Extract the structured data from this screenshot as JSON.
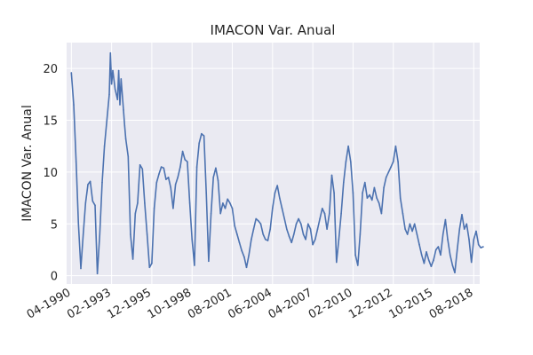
{
  "chart_data": {
    "type": "line",
    "title": "IMACON Var. Anual",
    "xlabel": "",
    "ylabel": "IMACON Var. Anual",
    "xlim": [
      "1989-12",
      "2019-01"
    ],
    "ylim": [
      -0.8,
      22.5
    ],
    "grid": true,
    "y_ticks": [
      0,
      5,
      10,
      15,
      20
    ],
    "x_ticks": [
      "04-1990",
      "02-1993",
      "12-1995",
      "10-1998",
      "08-2001",
      "06-2004",
      "04-2007",
      "02-2010",
      "12-2012",
      "10-2015",
      "08-2018"
    ],
    "series": [
      {
        "color": "#4c72b0",
        "points": [
          [
            "1990-04",
            19.6
          ],
          [
            "1990-06",
            16.5
          ],
          [
            "1990-08",
            11.0
          ],
          [
            "1990-10",
            5.0
          ],
          [
            "1990-12",
            0.7
          ],
          [
            "1991-02",
            4.0
          ],
          [
            "1991-04",
            7.0
          ],
          [
            "1991-06",
            8.8
          ],
          [
            "1991-08",
            9.1
          ],
          [
            "1991-10",
            7.2
          ],
          [
            "1991-12",
            6.8
          ],
          [
            "1992-02",
            0.2
          ],
          [
            "1992-04",
            4.0
          ],
          [
            "1992-06",
            9.0
          ],
          [
            "1992-08",
            12.5
          ],
          [
            "1992-10",
            15.0
          ],
          [
            "1992-12",
            17.5
          ],
          [
            "1993-01",
            21.5
          ],
          [
            "1993-02",
            18.5
          ],
          [
            "1993-03",
            19.8
          ],
          [
            "1993-05",
            18.0
          ],
          [
            "1993-07",
            17.0
          ],
          [
            "1993-08",
            19.8
          ],
          [
            "1993-09",
            16.5
          ],
          [
            "1993-10",
            19.0
          ],
          [
            "1993-12",
            16.0
          ],
          [
            "1994-01",
            14.5
          ],
          [
            "1994-02",
            13.2
          ],
          [
            "1994-04",
            11.5
          ],
          [
            "1994-06",
            4.0
          ],
          [
            "1994-08",
            1.6
          ],
          [
            "1994-10",
            6.0
          ],
          [
            "1994-12",
            7.0
          ],
          [
            "1995-02",
            10.7
          ],
          [
            "1995-04",
            10.3
          ],
          [
            "1995-06",
            7.0
          ],
          [
            "1995-08",
            4.0
          ],
          [
            "1995-10",
            0.8
          ],
          [
            "1995-12",
            1.2
          ],
          [
            "1996-02",
            6.5
          ],
          [
            "1996-04",
            9.0
          ],
          [
            "1996-06",
            9.8
          ],
          [
            "1996-08",
            10.5
          ],
          [
            "1996-10",
            10.4
          ],
          [
            "1996-12",
            9.3
          ],
          [
            "1997-02",
            9.5
          ],
          [
            "1997-04",
            8.5
          ],
          [
            "1997-06",
            6.5
          ],
          [
            "1997-08",
            8.8
          ],
          [
            "1997-10",
            9.5
          ],
          [
            "1997-12",
            10.5
          ],
          [
            "1998-02",
            12.0
          ],
          [
            "1998-04",
            11.2
          ],
          [
            "1998-06",
            11.0
          ],
          [
            "1998-08",
            7.0
          ],
          [
            "1998-10",
            3.5
          ],
          [
            "1998-12",
            1.0
          ],
          [
            "1999-02",
            10.5
          ],
          [
            "1999-04",
            12.8
          ],
          [
            "1999-06",
            13.7
          ],
          [
            "1999-08",
            13.5
          ],
          [
            "1999-10",
            8.0
          ],
          [
            "1999-12",
            1.4
          ],
          [
            "2000-02",
            6.0
          ],
          [
            "2000-04",
            9.5
          ],
          [
            "2000-06",
            10.4
          ],
          [
            "2000-08",
            9.2
          ],
          [
            "2000-10",
            6.0
          ],
          [
            "2000-12",
            7.0
          ],
          [
            "2001-02",
            6.5
          ],
          [
            "2001-04",
            7.4
          ],
          [
            "2001-06",
            7.0
          ],
          [
            "2001-08",
            6.5
          ],
          [
            "2001-10",
            4.8
          ],
          [
            "2001-12",
            4.0
          ],
          [
            "2002-02",
            3.2
          ],
          [
            "2002-04",
            2.4
          ],
          [
            "2002-06",
            1.8
          ],
          [
            "2002-08",
            0.8
          ],
          [
            "2002-10",
            2.0
          ],
          [
            "2002-12",
            3.5
          ],
          [
            "2003-02",
            4.5
          ],
          [
            "2003-04",
            5.5
          ],
          [
            "2003-06",
            5.3
          ],
          [
            "2003-08",
            5.0
          ],
          [
            "2003-10",
            4.0
          ],
          [
            "2003-12",
            3.5
          ],
          [
            "2004-02",
            3.4
          ],
          [
            "2004-04",
            4.5
          ],
          [
            "2004-06",
            6.5
          ],
          [
            "2004-08",
            8.0
          ],
          [
            "2004-10",
            8.7
          ],
          [
            "2004-12",
            7.5
          ],
          [
            "2005-02",
            6.5
          ],
          [
            "2005-04",
            5.5
          ],
          [
            "2005-06",
            4.5
          ],
          [
            "2005-08",
            3.8
          ],
          [
            "2005-10",
            3.2
          ],
          [
            "2005-12",
            4.0
          ],
          [
            "2006-02",
            5.0
          ],
          [
            "2006-04",
            5.5
          ],
          [
            "2006-06",
            5.0
          ],
          [
            "2006-08",
            4.0
          ],
          [
            "2006-10",
            3.5
          ],
          [
            "2006-12",
            5.0
          ],
          [
            "2007-02",
            4.5
          ],
          [
            "2007-04",
            3.0
          ],
          [
            "2007-06",
            3.5
          ],
          [
            "2007-08",
            4.5
          ],
          [
            "2007-10",
            5.5
          ],
          [
            "2007-12",
            6.5
          ],
          [
            "2008-02",
            6.0
          ],
          [
            "2008-04",
            4.5
          ],
          [
            "2008-06",
            6.0
          ],
          [
            "2008-08",
            9.7
          ],
          [
            "2008-10",
            8.0
          ],
          [
            "2008-12",
            1.3
          ],
          [
            "2009-02",
            3.5
          ],
          [
            "2009-04",
            6.0
          ],
          [
            "2009-06",
            9.0
          ],
          [
            "2009-08",
            11.0
          ],
          [
            "2009-10",
            12.5
          ],
          [
            "2009-12",
            11.0
          ],
          [
            "2010-02",
            8.0
          ],
          [
            "2010-04",
            2.0
          ],
          [
            "2010-06",
            1.0
          ],
          [
            "2010-08",
            4.0
          ],
          [
            "2010-10",
            8.0
          ],
          [
            "2010-12",
            9.0
          ],
          [
            "2011-02",
            7.5
          ],
          [
            "2011-04",
            7.8
          ],
          [
            "2011-06",
            7.3
          ],
          [
            "2011-08",
            8.5
          ],
          [
            "2011-10",
            7.5
          ],
          [
            "2011-12",
            7.0
          ],
          [
            "2012-02",
            6.0
          ],
          [
            "2012-04",
            8.5
          ],
          [
            "2012-06",
            9.5
          ],
          [
            "2012-08",
            10.0
          ],
          [
            "2012-10",
            10.5
          ],
          [
            "2012-12",
            11.0
          ],
          [
            "2013-02",
            12.5
          ],
          [
            "2013-04",
            11.0
          ],
          [
            "2013-06",
            7.5
          ],
          [
            "2013-08",
            6.0
          ],
          [
            "2013-10",
            4.5
          ],
          [
            "2013-12",
            4.0
          ],
          [
            "2014-02",
            5.0
          ],
          [
            "2014-04",
            4.3
          ],
          [
            "2014-06",
            5.0
          ],
          [
            "2014-08",
            4.0
          ],
          [
            "2014-10",
            3.0
          ],
          [
            "2014-12",
            2.0
          ],
          [
            "2015-02",
            1.2
          ],
          [
            "2015-04",
            2.3
          ],
          [
            "2015-06",
            1.5
          ],
          [
            "2015-08",
            0.9
          ],
          [
            "2015-10",
            1.5
          ],
          [
            "2015-12",
            2.5
          ],
          [
            "2016-02",
            2.8
          ],
          [
            "2016-04",
            2.0
          ],
          [
            "2016-06",
            4.0
          ],
          [
            "2016-08",
            5.4
          ],
          [
            "2016-10",
            3.5
          ],
          [
            "2016-12",
            2.0
          ],
          [
            "2017-02",
            1.0
          ],
          [
            "2017-04",
            0.3
          ],
          [
            "2017-06",
            2.5
          ],
          [
            "2017-08",
            4.5
          ],
          [
            "2017-10",
            5.9
          ],
          [
            "2017-12",
            4.5
          ],
          [
            "2018-02",
            5.0
          ],
          [
            "2018-04",
            3.5
          ],
          [
            "2018-06",
            1.3
          ],
          [
            "2018-08",
            3.5
          ],
          [
            "2018-10",
            4.3
          ],
          [
            "2018-12",
            3.0
          ],
          [
            "2019-02",
            2.7
          ],
          [
            "2019-04",
            2.8
          ]
        ]
      }
    ]
  }
}
